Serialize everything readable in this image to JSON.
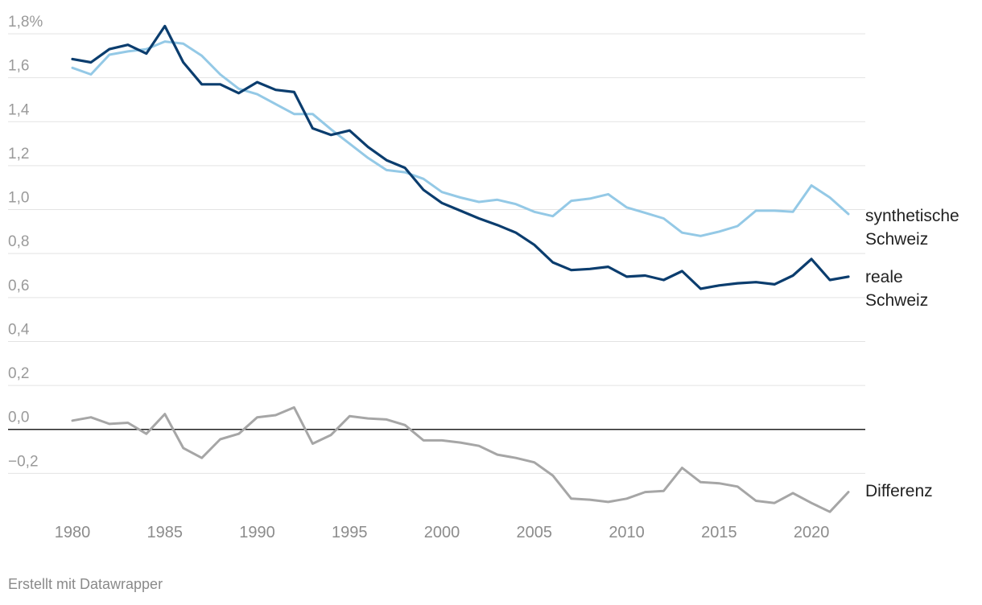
{
  "chart_data": {
    "type": "line",
    "x": [
      1980,
      1981,
      1982,
      1983,
      1984,
      1985,
      1986,
      1987,
      1988,
      1989,
      1990,
      1991,
      1992,
      1993,
      1994,
      1995,
      1996,
      1997,
      1998,
      1999,
      2000,
      2001,
      2002,
      2003,
      2004,
      2005,
      2006,
      2007,
      2008,
      2009,
      2010,
      2011,
      2012,
      2013,
      2014,
      2015,
      2016,
      2017,
      2018,
      2019,
      2020,
      2021,
      2022
    ],
    "xlim": [
      1980,
      2022
    ],
    "x_ticks": [
      1980,
      1985,
      1990,
      1995,
      2000,
      2005,
      2010,
      2015,
      2020
    ],
    "x_tick_labels": [
      "1980",
      "1985",
      "1990",
      "1995",
      "2000",
      "2005",
      "2010",
      "2015",
      "2020"
    ],
    "ylim": [
      -0.4,
      1.8
    ],
    "y_ticks": [
      1.8,
      1.6,
      1.4,
      1.2,
      1.0,
      0.8,
      0.6,
      0.4,
      0.2,
      0.0,
      -0.2
    ],
    "y_tick_labels": [
      "1,8%",
      "1,6",
      "1,4",
      "1,2",
      "1,0",
      "0,8",
      "0,6",
      "0,4",
      "0,2",
      "0,0",
      "−0,2"
    ],
    "grid": true,
    "series": [
      {
        "name_lines": [
          "synthetische",
          "Schweiz"
        ],
        "color": "#94c9e6",
        "values": [
          1.645,
          1.615,
          1.705,
          1.72,
          1.73,
          1.765,
          1.755,
          1.7,
          1.615,
          1.55,
          1.525,
          1.48,
          1.435,
          1.435,
          1.365,
          1.3,
          1.235,
          1.18,
          1.17,
          1.14,
          1.08,
          1.055,
          1.035,
          1.045,
          1.025,
          0.99,
          0.97,
          1.04,
          1.05,
          1.07,
          1.01,
          0.985,
          0.96,
          0.895,
          0.88,
          0.9,
          0.925,
          0.995,
          0.995,
          0.99,
          1.11,
          1.055,
          0.98
        ]
      },
      {
        "name_lines": [
          "reale",
          "Schweiz"
        ],
        "color": "#0b3d6e",
        "values": [
          1.685,
          1.67,
          1.73,
          1.75,
          1.71,
          1.835,
          1.67,
          1.57,
          1.57,
          1.53,
          1.58,
          1.545,
          1.535,
          1.37,
          1.34,
          1.36,
          1.285,
          1.225,
          1.19,
          1.09,
          1.03,
          0.995,
          0.96,
          0.93,
          0.895,
          0.84,
          0.76,
          0.725,
          0.73,
          0.74,
          0.695,
          0.7,
          0.68,
          0.72,
          0.64,
          0.655,
          0.665,
          0.67,
          0.66,
          0.7,
          0.775,
          0.68,
          0.695
        ]
      },
      {
        "name_lines": [
          "Differenz"
        ],
        "color": "#a6a6a6",
        "values": [
          0.04,
          0.055,
          0.025,
          0.03,
          -0.02,
          0.07,
          -0.085,
          -0.13,
          -0.045,
          -0.02,
          0.055,
          0.065,
          0.1,
          -0.065,
          -0.025,
          0.06,
          0.05,
          0.045,
          0.02,
          -0.05,
          -0.05,
          -0.06,
          -0.075,
          -0.115,
          -0.13,
          -0.15,
          -0.21,
          -0.315,
          -0.32,
          -0.33,
          -0.315,
          -0.285,
          -0.28,
          -0.175,
          -0.24,
          -0.245,
          -0.26,
          -0.325,
          -0.335,
          -0.29,
          -0.335,
          -0.375,
          -0.285
        ]
      }
    ]
  },
  "footer": {
    "credit": "Erstellt mit Datawrapper"
  }
}
